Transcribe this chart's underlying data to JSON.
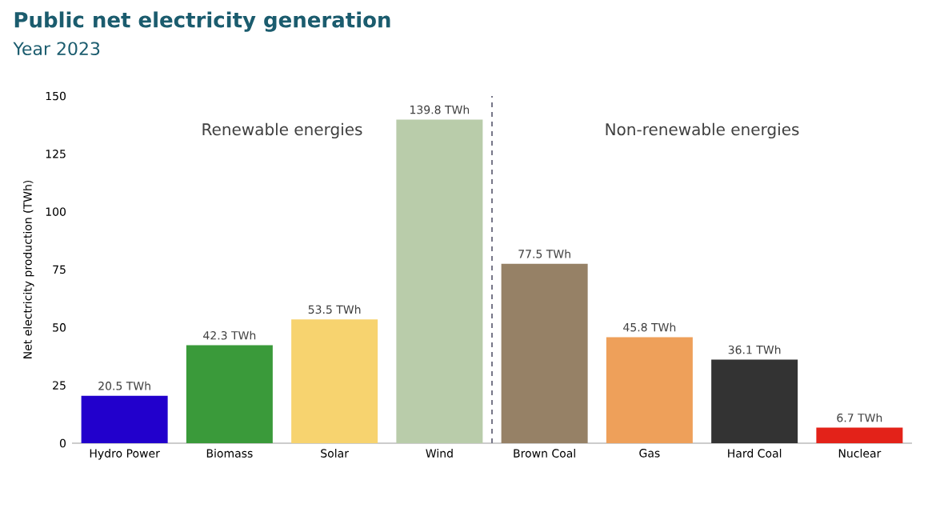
{
  "chart_data": {
    "type": "bar",
    "title": "Public net electricity generation",
    "subtitle": "Year 2023",
    "ylabel": "Net electricity production (TWh)",
    "categories": [
      "Hydro Power",
      "Biomass",
      "Solar",
      "Wind",
      "Brown Coal",
      "Gas",
      "Hard Coal",
      "Nuclear"
    ],
    "values": [
      20.5,
      42.3,
      53.5,
      139.8,
      77.5,
      45.8,
      36.1,
      6.7
    ],
    "value_labels": [
      "20.5 TWh",
      "42.3 TWh",
      "53.5 TWh",
      "139.8 TWh",
      "77.5 TWh",
      "45.8 TWh",
      "36.1 TWh",
      "6.7 TWh"
    ],
    "colors": [
      "#2200cc",
      "#3a9a3a",
      "#f7d36f",
      "#b9ccaa",
      "#968166",
      "#eea05a",
      "#333333",
      "#e32219"
    ],
    "ylim": [
      0,
      150
    ],
    "yticks": [
      0,
      25,
      50,
      75,
      100,
      125,
      150
    ],
    "annotations": [
      "Renewable energies",
      "Non-renewable energies"
    ],
    "grid": false
  }
}
